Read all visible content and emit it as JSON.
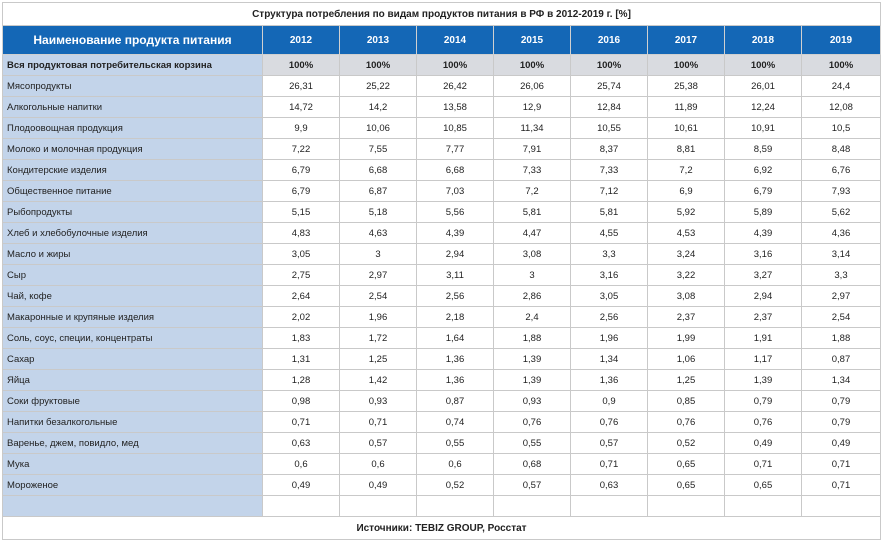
{
  "title": "Структура потребления по видам продуктов питания в РФ в 2012-2019 г. [%]",
  "header": {
    "name_col": "Наименование продукта питания",
    "years": [
      "2012",
      "2013",
      "2014",
      "2015",
      "2016",
      "2017",
      "2018",
      "2019"
    ]
  },
  "total": {
    "name": "Вся продуктовая потребительская корзина",
    "values": [
      "100%",
      "100%",
      "100%",
      "100%",
      "100%",
      "100%",
      "100%",
      "100%"
    ]
  },
  "rows": [
    {
      "name": "Мясопродукты",
      "values": [
        "26,31",
        "25,22",
        "26,42",
        "26,06",
        "25,74",
        "25,38",
        "26,01",
        "24,4"
      ]
    },
    {
      "name": "Алкогольные напитки",
      "values": [
        "14,72",
        "14,2",
        "13,58",
        "12,9",
        "12,84",
        "11,89",
        "12,24",
        "12,08"
      ]
    },
    {
      "name": "Плодоовощная продукция",
      "values": [
        "9,9",
        "10,06",
        "10,85",
        "11,34",
        "10,55",
        "10,61",
        "10,91",
        "10,5"
      ]
    },
    {
      "name": "Молоко и молочная продукция",
      "values": [
        "7,22",
        "7,55",
        "7,77",
        "7,91",
        "8,37",
        "8,81",
        "8,59",
        "8,48"
      ]
    },
    {
      "name": "Кондитерские изделия",
      "values": [
        "6,79",
        "6,68",
        "6,68",
        "7,33",
        "7,33",
        "7,2",
        "6,92",
        "6,76"
      ]
    },
    {
      "name": "Общественное питание",
      "values": [
        "6,79",
        "6,87",
        "7,03",
        "7,2",
        "7,12",
        "6,9",
        "6,79",
        "7,93"
      ]
    },
    {
      "name": "Рыбопродукты",
      "values": [
        "5,15",
        "5,18",
        "5,56",
        "5,81",
        "5,81",
        "5,92",
        "5,89",
        "5,62"
      ]
    },
    {
      "name": "Хлеб и хлебобулочные изделия",
      "values": [
        "4,83",
        "4,63",
        "4,39",
        "4,47",
        "4,55",
        "4,53",
        "4,39",
        "4,36"
      ]
    },
    {
      "name": "Масло и жиры",
      "values": [
        "3,05",
        "3",
        "2,94",
        "3,08",
        "3,3",
        "3,24",
        "3,16",
        "3,14"
      ]
    },
    {
      "name": "Сыр",
      "values": [
        "2,75",
        "2,97",
        "3,11",
        "3",
        "3,16",
        "3,22",
        "3,27",
        "3,3"
      ]
    },
    {
      "name": "Чай, кофе",
      "values": [
        "2,64",
        "2,54",
        "2,56",
        "2,86",
        "3,05",
        "3,08",
        "2,94",
        "2,97"
      ]
    },
    {
      "name": "Макаронные и крупяные изделия",
      "values": [
        "2,02",
        "1,96",
        "2,18",
        "2,4",
        "2,56",
        "2,37",
        "2,37",
        "2,54"
      ]
    },
    {
      "name": "Соль, соус, специи, концентраты",
      "values": [
        "1,83",
        "1,72",
        "1,64",
        "1,88",
        "1,96",
        "1,99",
        "1,91",
        "1,88"
      ]
    },
    {
      "name": "Сахар",
      "values": [
        "1,31",
        "1,25",
        "1,36",
        "1,39",
        "1,34",
        "1,06",
        "1,17",
        "0,87"
      ]
    },
    {
      "name": "Яйца",
      "values": [
        "1,28",
        "1,42",
        "1,36",
        "1,39",
        "1,36",
        "1,25",
        "1,39",
        "1,34"
      ]
    },
    {
      "name": "Соки фруктовые",
      "values": [
        "0,98",
        "0,93",
        "0,87",
        "0,93",
        "0,9",
        "0,85",
        "0,79",
        "0,79"
      ]
    },
    {
      "name": "Напитки безалкогольные",
      "values": [
        "0,71",
        "0,71",
        "0,74",
        "0,76",
        "0,76",
        "0,76",
        "0,76",
        "0,79"
      ]
    },
    {
      "name": "Варенье, джем, повидло, мед",
      "values": [
        "0,63",
        "0,57",
        "0,55",
        "0,55",
        "0,57",
        "0,52",
        "0,49",
        "0,49"
      ]
    },
    {
      "name": "Мука",
      "values": [
        "0,6",
        "0,6",
        "0,6",
        "0,68",
        "0,71",
        "0,65",
        "0,71",
        "0,71"
      ]
    },
    {
      "name": "Мороженое",
      "values": [
        "0,49",
        "0,49",
        "0,52",
        "0,57",
        "0,63",
        "0,65",
        "0,65",
        "0,71"
      ]
    }
  ],
  "source": "Источники: TEBIZ GROUP, Росстат",
  "colors": {
    "header_bg": "#1467b6",
    "name_col_bg": "#c3d4ea",
    "total_bg": "#d9dbe0"
  }
}
